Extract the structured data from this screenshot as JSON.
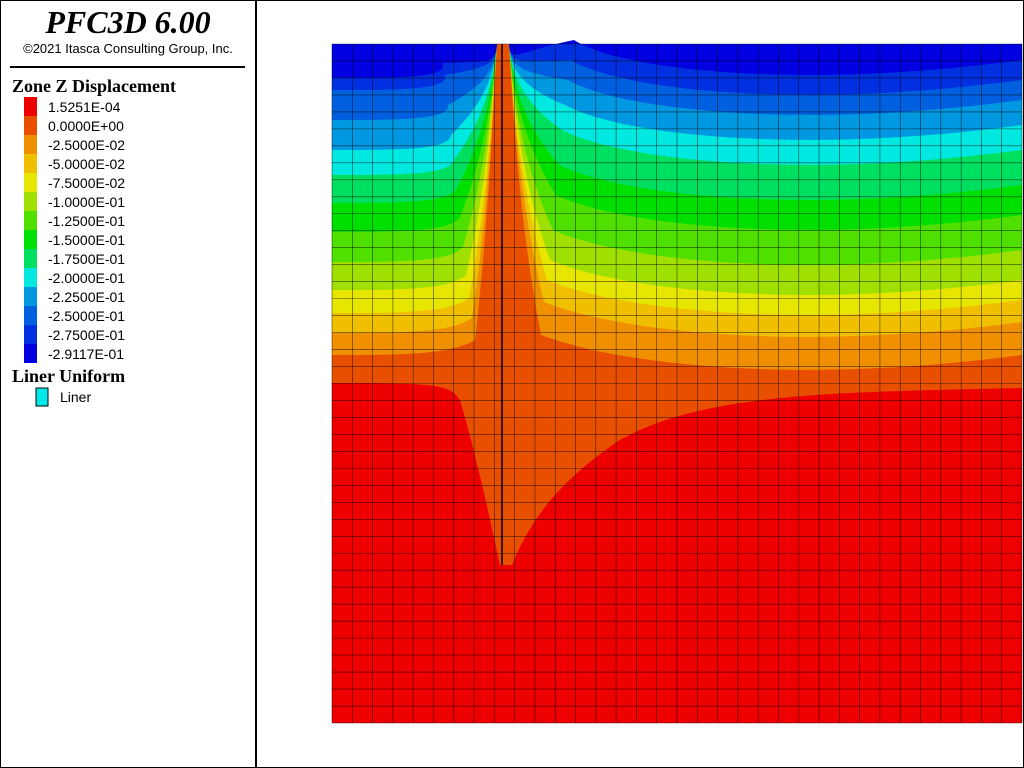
{
  "header": {
    "title": "PFC3D 6.00",
    "copyright": "©2021 Itasca Consulting Group, Inc."
  },
  "legend": {
    "title": "Zone Z Displacement",
    "entries": [
      {
        "label": "1.5251E-04",
        "color": "#ee0000"
      },
      {
        "label": "0.0000E+00",
        "color": "#e85000"
      },
      {
        "label": "-2.5000E-02",
        "color": "#f09000"
      },
      {
        "label": "-5.0000E-02",
        "color": "#f0c000"
      },
      {
        "label": "-7.5000E-02",
        "color": "#e6e600"
      },
      {
        "label": "-1.0000E-01",
        "color": "#a0e000"
      },
      {
        "label": "-1.2500E-01",
        "color": "#50e000"
      },
      {
        "label": "-1.5000E-01",
        "color": "#00e000"
      },
      {
        "label": "-1.7500E-01",
        "color": "#00e060"
      },
      {
        "label": "-2.0000E-01",
        "color": "#00e8e0"
      },
      {
        "label": "-2.2500E-01",
        "color": "#0098e0"
      },
      {
        "label": "-2.5000E-01",
        "color": "#0060e0"
      },
      {
        "label": "-2.7500E-01",
        "color": "#0030e0"
      },
      {
        "label": "-2.9117E-01",
        "color": "#0000e0"
      }
    ]
  },
  "liner": {
    "title": "Liner Uniform",
    "label": "Liner",
    "color": "#00e8e8"
  }
}
